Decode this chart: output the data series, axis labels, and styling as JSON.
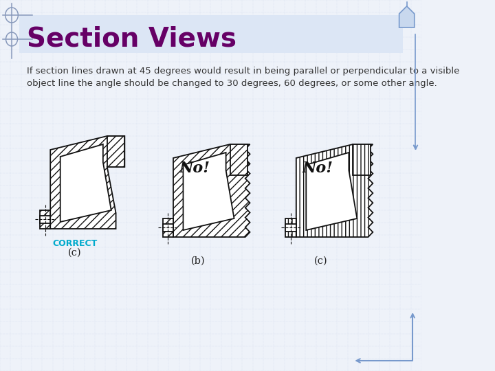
{
  "title": "Section Views",
  "title_color": "#660066",
  "title_fontsize": 28,
  "title_bg_color": "#dce6f5",
  "body_text": "If section lines drawn at 45 degrees would result in being parallel or perpendicular to a visible\nobject line the angle should be changed to 30 degrees, 60 degrees, or some other angle.",
  "body_fontsize": 9.5,
  "body_color": "#333333",
  "bg_color": "#eef2f9",
  "grid_color": "#c5d0e8",
  "correct_text": "CORRECT",
  "correct_color": "#00aacc",
  "no_text": "No!",
  "line_color": "#111111",
  "border_color": "#8899bb",
  "arrow_color": "#7799cc",
  "diagram_bg": "#ffffff"
}
